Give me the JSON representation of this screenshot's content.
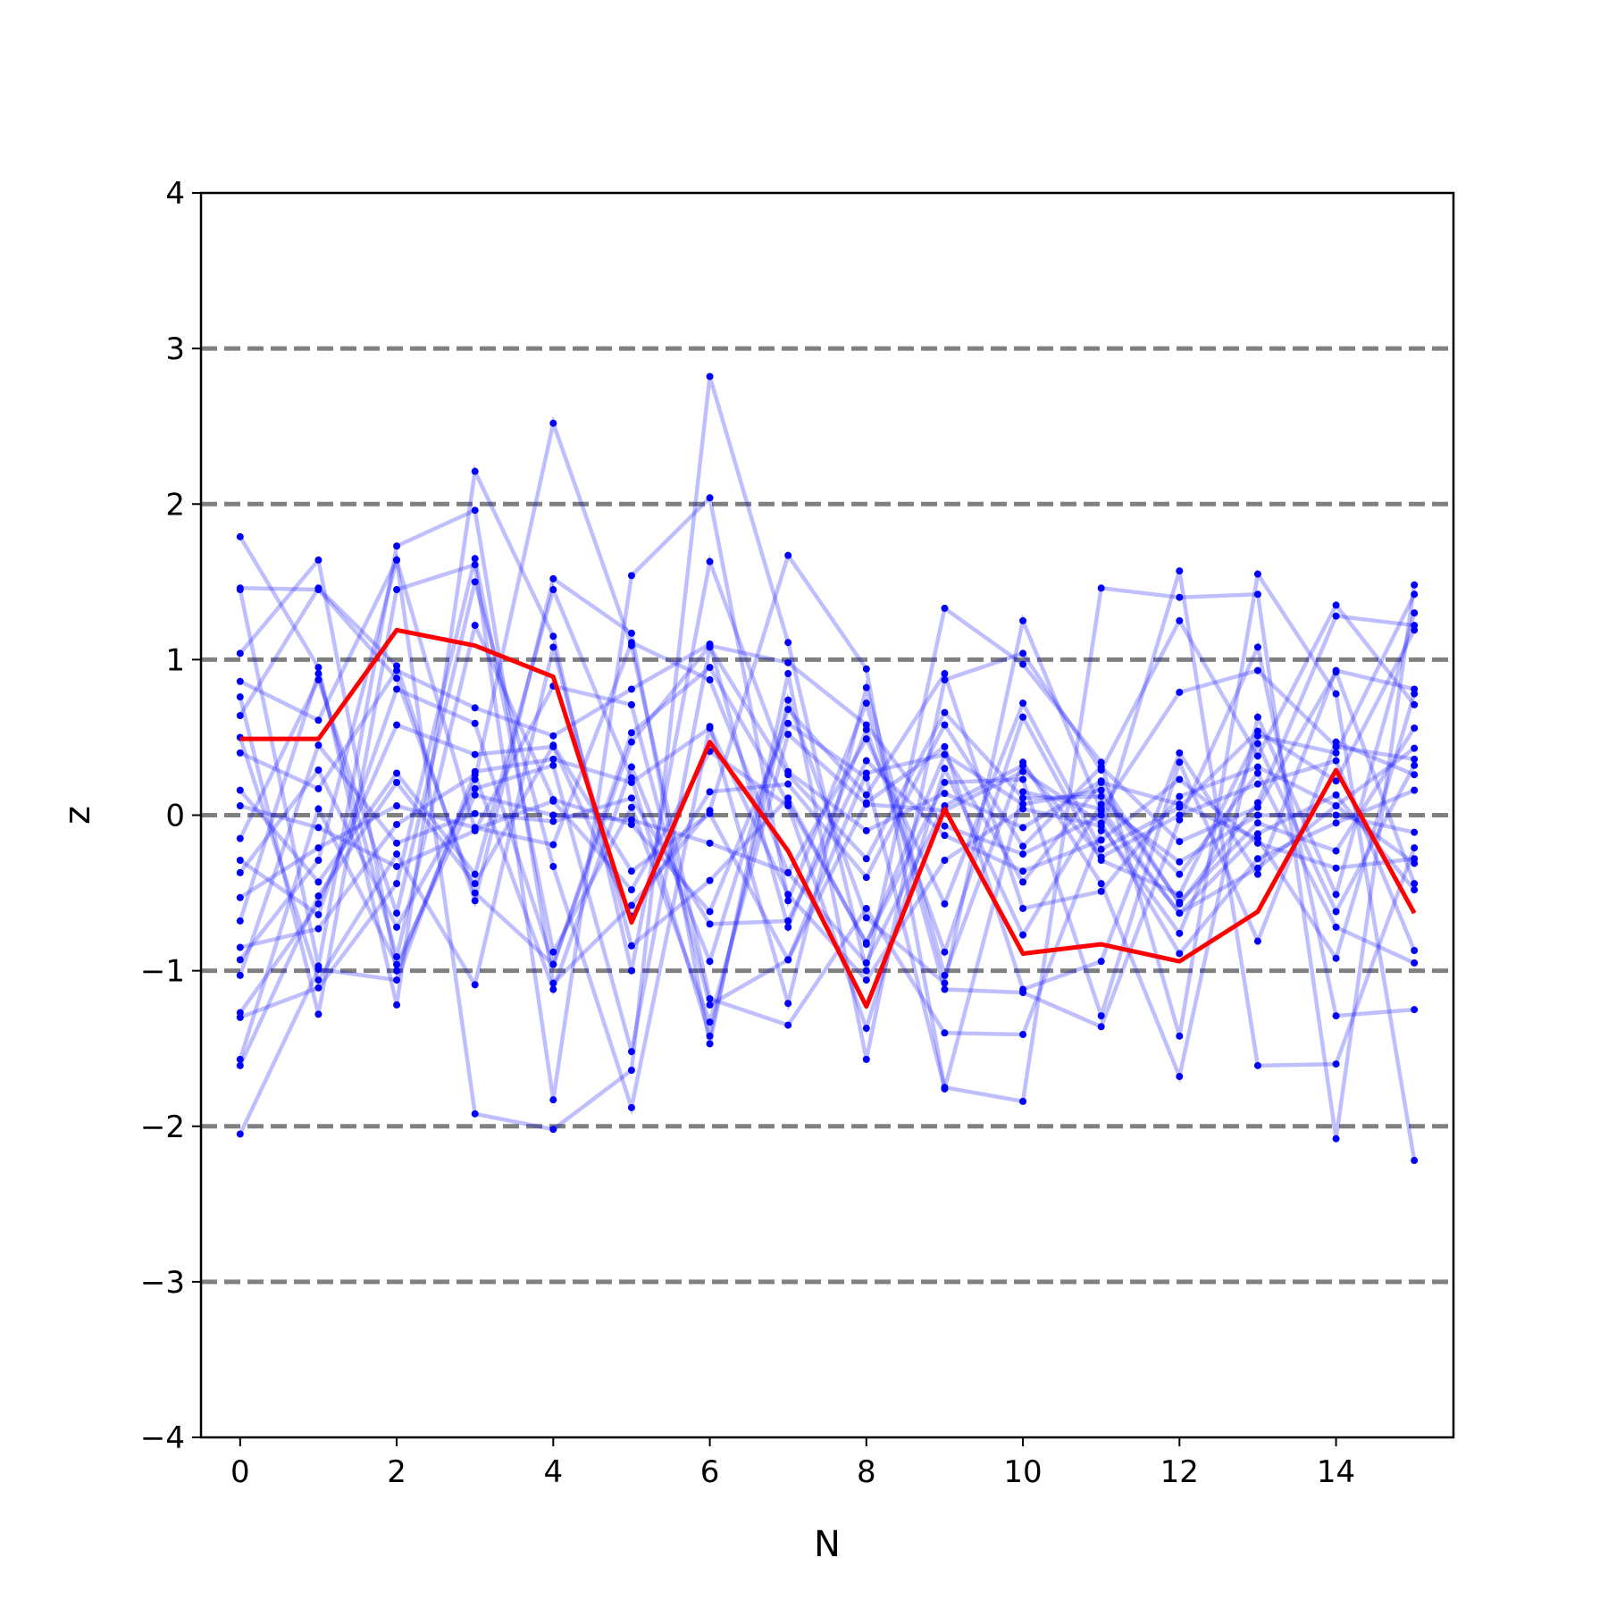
{
  "chart_data": {
    "type": "line",
    "xlabel": "N",
    "ylabel": "z",
    "xlim": [
      -0.5,
      15.5
    ],
    "ylim": [
      -4,
      4
    ],
    "xticks": [
      0,
      2,
      4,
      6,
      8,
      10,
      12,
      14
    ],
    "yticks": [
      -4,
      -3,
      -2,
      -1,
      0,
      1,
      2,
      3,
      4
    ],
    "xtick_labels": [
      "0",
      "2",
      "4",
      "6",
      "8",
      "10",
      "12",
      "14"
    ],
    "ytick_labels": [
      "−4",
      "−3",
      "−2",
      "−1",
      "0",
      "1",
      "2",
      "3",
      "4"
    ],
    "reference_lines": [
      -3,
      -2,
      -1,
      0,
      1,
      2,
      3
    ],
    "reference_line_color": "#808080",
    "sample_color": "#0000ff",
    "highlight_color": "#ff0000",
    "x": [
      0,
      1,
      2,
      3,
      4,
      5,
      6,
      7,
      8,
      9,
      10,
      11,
      12,
      13,
      14,
      15
    ],
    "highlight": [
      0.49,
      0.49,
      1.19,
      1.09,
      0.89,
      -0.69,
      0.47,
      -0.23,
      -1.23,
      0.04,
      -0.89,
      -0.83,
      -0.94,
      -0.62,
      0.29,
      -0.63
    ],
    "samples": [
      [
        1.79,
        0.95,
        -1.22,
        2.21,
        1.15,
        -1.0,
        1.63,
        0.28,
        -0.1,
        0.14,
        -0.08,
        0.22,
        -0.57,
        0.08,
        1.28,
        1.22
      ],
      [
        1.45,
        -0.97,
        1.73,
        1.96,
        -1.08,
        -0.58,
        0.03,
        1.67,
        0.94,
        -1.75,
        -1.84,
        1.46,
        1.4,
        1.42,
        -2.08,
        1.48
      ],
      [
        1.04,
        1.64,
        -1.0,
        0.23,
        2.52,
        1.09,
        -1.18,
        -1.35,
        -0.6,
        -1.4,
        -1.41,
        -0.1,
        1.57,
        -1.61,
        -1.6,
        -0.21
      ],
      [
        0.86,
        0.61,
        1.64,
        -1.92,
        -2.02,
        -1.64,
        2.82,
        1.11,
        -1.0,
        1.33,
        0.97,
        0.34,
        -1.42,
        1.55,
        0.78,
        -2.22
      ],
      [
        0.76,
        -1.28,
        1.45,
        1.61,
        -1.83,
        1.54,
        2.04,
        -0.55,
        0.72,
        -1.12,
        -1.14,
        -1.36,
        -0.03,
        1.08,
        -1.29,
        -1.25
      ],
      [
        0.64,
        1.46,
        0.96,
        -0.55,
        1.52,
        1.17,
        -1.47,
        0.91,
        -1.57,
        0.87,
        1.04,
        0.29,
        1.25,
        0.38,
        1.35,
        0.71
      ],
      [
        0.4,
        0.17,
        0.93,
        0.69,
        0.51,
        0.81,
        1.1,
        -0.72,
        0.55,
        -0.88,
        0.63,
        -0.29,
        -0.51,
        0.51,
        0.4,
        1.42
      ],
      [
        0.16,
        -0.43,
        0.27,
        -0.38,
        1.45,
        0.24,
        -1.42,
        0.74,
        -0.66,
        -1.08,
        1.25,
        0.03,
        0.79,
        0.93,
        0.44,
        0.36
      ],
      [
        0.06,
        -0.08,
        -0.33,
        -0.1,
        0.83,
        0.71,
        -1.22,
        -0.93,
        0.08,
        0.44,
        -1.12,
        -0.94,
        0.4,
        -0.38,
        0.93,
        0.81
      ],
      [
        -0.15,
        0.87,
        -0.63,
        1.5,
        -0.33,
        -1.88,
        0.57,
        -1.21,
        0.82,
        -1.03,
        0.34,
        -0.44,
        -1.68,
        0.63,
        -0.51,
        1.3
      ],
      [
        -0.29,
        -0.64,
        0.81,
        0.59,
        -0.96,
        0.53,
        0.95,
        0.08,
        -0.82,
        0.21,
        0.23,
        -1.29,
        0.34,
        -0.81,
        0.47,
        0.26
      ],
      [
        -0.37,
        0.29,
        -0.72,
        0.17,
        0.32,
        -1.52,
        1.08,
        0.26,
        -0.28,
        0.66,
        0.11,
        0.12,
        -0.38,
        0.27,
        -0.72,
        -0.95
      ],
      [
        -0.53,
        -0.21,
        0.06,
        -0.08,
        -0.19,
        1.11,
        0.87,
        -0.37,
        0.49,
        -0.57,
        0.72,
        -0.22,
        0.05,
        0.54,
        0.22,
        1.19
      ],
      [
        -0.68,
        0.91,
        -0.91,
        1.22,
        0.1,
        -0.06,
        -0.62,
        0.59,
        0.24,
        -1.76,
        0.15,
        0.04,
        -0.63,
        -0.12,
        0.13,
        -0.48
      ],
      [
        -0.85,
        -0.73,
        -0.06,
        0.26,
        -1.12,
        0.31,
        -0.94,
        0.68,
        0.13,
        0.91,
        -0.6,
        -0.49,
        0.12,
        0.31,
        0.06,
        0.43
      ],
      [
        -0.93,
        -0.29,
        1.64,
        -0.09,
        0.09,
        -0.48,
        0.41,
        0.06,
        -1.37,
        0.3,
        -0.77,
        0.07,
        -0.3,
        0.0,
        0.0,
        -0.11
      ],
      [
        -1.03,
        0.45,
        -0.18,
        0.01,
        -0.04,
        0.11,
        -0.7,
        -0.68,
        0.35,
        -0.13,
        -0.36,
        -0.16,
        0.23,
        -0.18,
        -0.34,
        -0.28
      ],
      [
        -1.27,
        -0.57,
        0.58,
        0.39,
        0.44,
        -0.65,
        0.15,
        0.2,
        -0.4,
        0.58,
        -0.2,
        0.31,
        -0.17,
        0.05,
        0.92,
        -0.44
      ],
      [
        -1.3,
        -1.11,
        -0.44,
        1.65,
        -0.88,
        0.05,
        -1.33,
        0.52,
        0.07,
        0.03,
        0.28,
        -0.05,
        -0.89,
        -0.28,
        -0.05,
        0.16
      ],
      [
        -1.57,
        0.04,
        -0.96,
        0.13,
        0.0,
        -0.03,
        -0.18,
        -0.37,
        -0.95,
        0.06,
        0.32,
        -0.27,
        0.0,
        0.2,
        0.35,
        -0.87
      ],
      [
        -1.61,
        -0.52,
        0.21,
        -0.44,
        0.45,
        -0.36,
        0.01,
        -0.93,
        0.27,
        0.39,
        0.07,
        0.16,
        -0.56,
        -0.05,
        -0.23,
        0.56
      ],
      [
        -2.05,
        -0.99,
        -1.06,
        0.28,
        0.36,
        0.21,
        0.56,
        -0.51,
        -1.06,
        -0.29,
        0.04,
        -0.07,
        -0.76,
        0.46,
        -0.62,
        0.32
      ],
      [
        1.46,
        1.45,
        0.88,
        -0.5,
        -0.96,
        0.47,
        1.09,
        0.98,
        0.58,
        -0.07,
        -0.25,
        0.0,
        -0.63,
        -0.34,
        0.06,
        -0.31
      ],
      [
        0.5,
        -1.06,
        -0.25,
        -1.09,
        1.08,
        -0.84,
        -0.42,
        0.11,
        -0.83,
        0.39,
        -0.43,
        0.21,
        0.07,
        -0.15,
        -0.92,
        0.78
      ]
    ]
  }
}
